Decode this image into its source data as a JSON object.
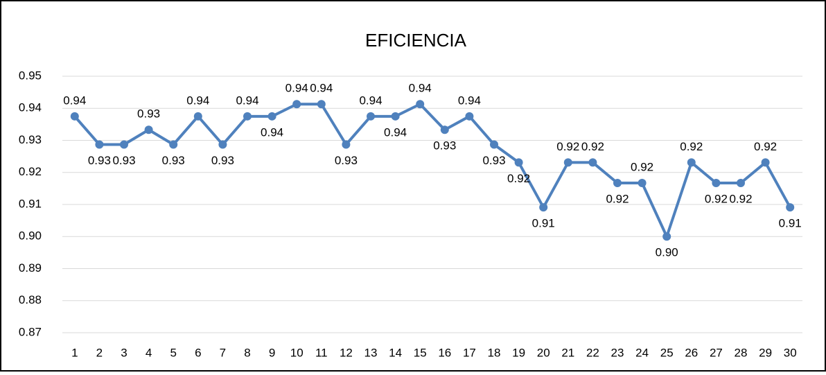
{
  "chart_data": {
    "type": "line",
    "title": "EFICIENCIA",
    "categories": [
      1,
      2,
      3,
      4,
      5,
      6,
      7,
      8,
      9,
      10,
      11,
      12,
      13,
      14,
      15,
      16,
      17,
      18,
      19,
      20,
      21,
      22,
      23,
      24,
      25,
      26,
      27,
      28,
      29,
      30
    ],
    "series": [
      {
        "color": "#4f81bd",
        "values": [
          0.9375,
          0.9287,
          0.9287,
          0.9333,
          0.9287,
          0.9375,
          0.9287,
          0.9375,
          0.9375,
          0.9413,
          0.9413,
          0.9287,
          0.9375,
          0.9375,
          0.9413,
          0.9333,
          0.9375,
          0.9287,
          0.9231,
          0.9091,
          0.9231,
          0.9231,
          0.9167,
          0.9167,
          0.9,
          0.9231,
          0.9167,
          0.9167,
          0.9231,
          0.9091
        ],
        "value_labels": [
          "0.94",
          "0.93",
          "0.93",
          "0.93",
          "0.93",
          "0.94",
          "0.93",
          "0.94",
          "0.94",
          "0.94",
          "0.94",
          "0.93",
          "0.94",
          "0.94",
          "0.94",
          "0.93",
          "0.94",
          "0.93",
          "0.92",
          "0.91",
          "0.92",
          "0.92",
          "0.92",
          "0.92",
          "0.90",
          "0.92",
          "0.92",
          "0.92",
          "0.92",
          "0.91"
        ]
      }
    ],
    "ylim": [
      0.87,
      0.95
    ],
    "yticks": [
      0.87,
      0.88,
      0.89,
      {
        "value": 0.9,
        "label": "0.90"
      },
      0.91,
      0.92,
      0.93,
      0.94,
      0.95
    ],
    "grid": true
  }
}
